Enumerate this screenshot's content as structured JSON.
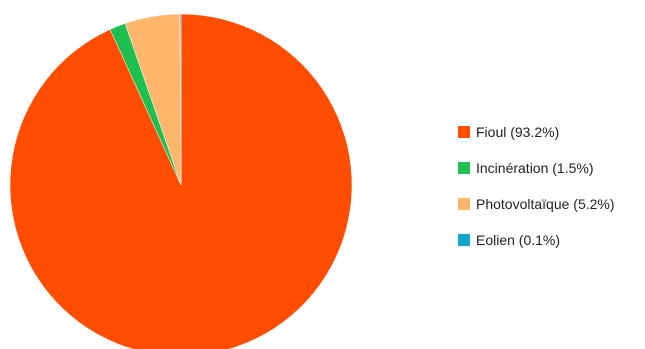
{
  "chart_data": {
    "type": "pie",
    "title": "",
    "categories": [
      "Fioul",
      "Incinération",
      "Photovoltaïque",
      "Eolien"
    ],
    "values": [
      93.2,
      1.5,
      5.2,
      0.1
    ],
    "colors": [
      "#ff4d00",
      "#1fbf4f",
      "#fdb66b",
      "#14a7c9"
    ],
    "legend_placement": "right",
    "legend_labels": [
      "Fioul (93.2%)",
      "Incinération (1.5%)",
      "Photovoltaïque  (5.2%)",
      "Eolien (0.1%)"
    ]
  }
}
